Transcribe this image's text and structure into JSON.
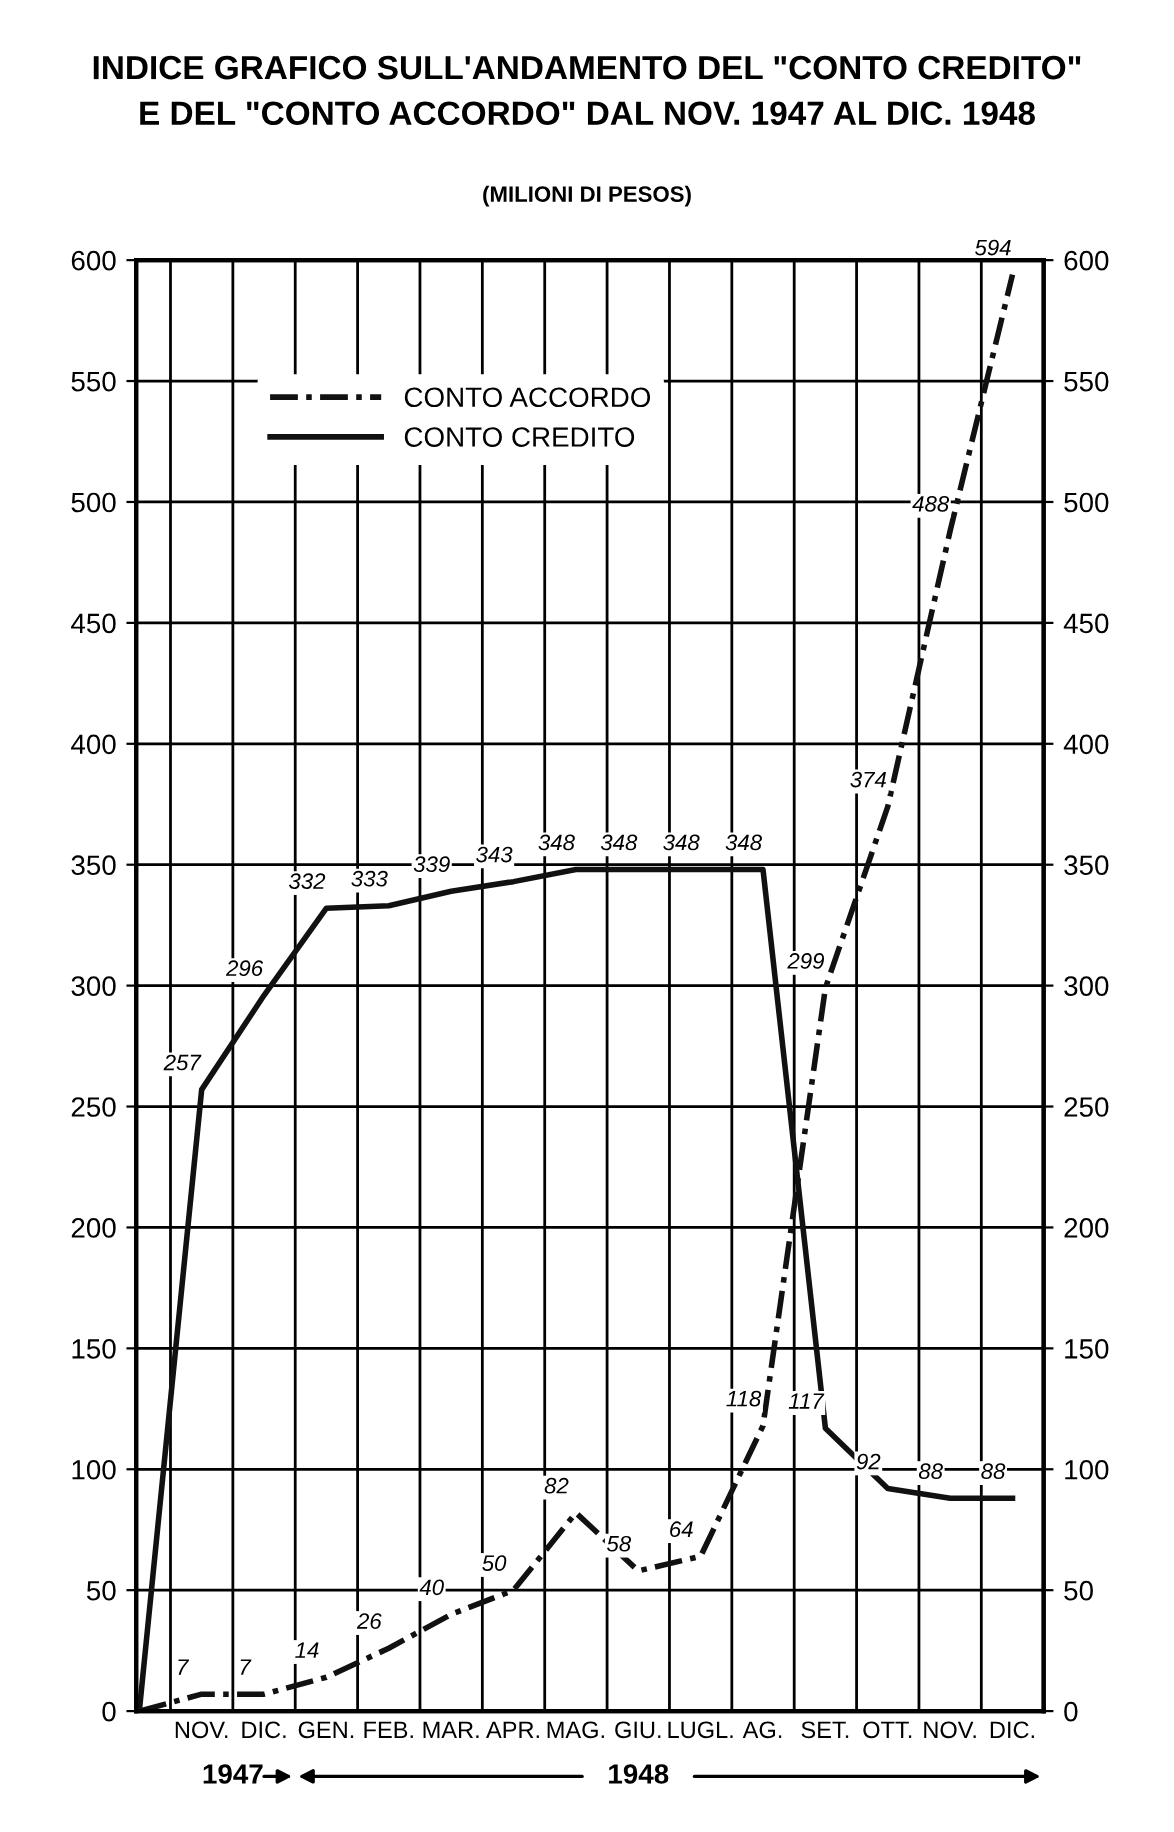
{
  "chart_data": {
    "type": "line",
    "title": "INDICE GRAFICO SULL'ANDAMENTO DEL \"CONTO CREDITO\"\nE DEL \"CONTO ACCORDO\" DAL NOV. 1947 AL DIC. 1948",
    "subtitle": "(MILIONI DI PESOS)",
    "categories": [
      null,
      "NOV.",
      "DIC.",
      "GEN.",
      "FEB.",
      "MAR.",
      "APR.",
      "MAG.",
      "GIU.",
      "LUGL.",
      "AG.",
      "SET.",
      "OTT.",
      "NOV.",
      "DIC."
    ],
    "series": [
      {
        "name": "CONTO ACCORDO",
        "color": "#111111",
        "line_style": "dashed",
        "values": [
          0,
          7,
          7,
          14,
          26,
          40,
          50,
          82,
          58,
          64,
          118,
          299,
          374,
          488,
          594
        ],
        "value_labels": [
          null,
          "7",
          "7",
          "14",
          "26",
          "40",
          "50",
          "82",
          "58",
          "64",
          "118",
          "299",
          "374",
          "488",
          "594"
        ]
      },
      {
        "name": "CONTO CREDITO",
        "color": "#111111",
        "line_style": "solid",
        "values": [
          0,
          257,
          296,
          332,
          333,
          339,
          343,
          348,
          348,
          348,
          348,
          117,
          92,
          88,
          88
        ],
        "value_labels": [
          null,
          "257",
          "296",
          "332",
          "333",
          "339",
          "343",
          "348",
          "348",
          "348",
          "348",
          "117",
          "92",
          "88",
          "88"
        ]
      }
    ],
    "ylim": [
      0,
      600
    ],
    "yticks": [
      0,
      50,
      100,
      150,
      200,
      250,
      300,
      350,
      400,
      450,
      500,
      550,
      600
    ],
    "y2lim": [
      0,
      600
    ],
    "y2ticks": [
      0,
      50,
      100,
      150,
      200,
      250,
      300,
      350,
      400,
      450,
      500,
      550,
      600
    ],
    "grid": true,
    "legend": "top left",
    "marker": "none",
    "annotations": [
      "1947",
      "1948"
    ]
  }
}
